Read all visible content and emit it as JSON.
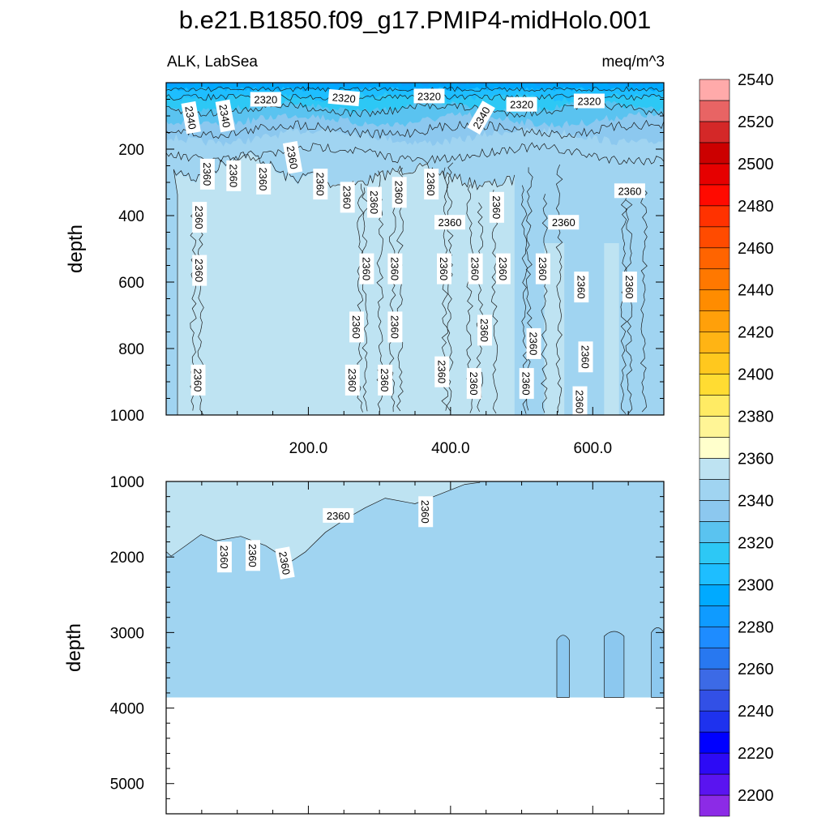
{
  "title": "b.e21.B1850.f09_g17.PMIP4-midHolo.001",
  "subtitle_left": "ALK, LabSea",
  "subtitle_right": "meq/m^3",
  "colors": {
    "axis": "#000000",
    "contour_line": "#1a1a1a",
    "missing": "#ffffff",
    "palette": [
      "#8c2be6",
      "#5a14f0",
      "#2d0af5",
      "#0000ff",
      "#1e32ee",
      "#3250e6",
      "#3c6ae6",
      "#2878f0",
      "#1e8cff",
      "#0f9bff",
      "#00aaff",
      "#1ebeff",
      "#2dc8f5",
      "#5ac3f0",
      "#8cc8ef",
      "#a0d4f1",
      "#bee3f2",
      "#ffffcc",
      "#fff596",
      "#ffeb64",
      "#ffdc32",
      "#ffc81e",
      "#ffb414",
      "#ffa00a",
      "#ff8c00",
      "#ff7800",
      "#ff6400",
      "#ff4b00",
      "#ff3200",
      "#ff0a00",
      "#e60000",
      "#cc0000",
      "#d42828",
      "#e86464",
      "#ffaaaa"
    ]
  },
  "chart_data": [
    {
      "type": "heatmap",
      "panel": "upper",
      "xlim": [
        0,
        700
      ],
      "ylim": [
        1000,
        0
      ],
      "x_ticks": [
        200,
        400,
        600
      ],
      "x_tick_labels": [
        "200.0",
        "400.0",
        "600.0"
      ],
      "y_ticks": [
        200,
        400,
        600,
        800,
        1000
      ],
      "y_tick_labels": [
        "200",
        "400",
        "600",
        "800",
        "1000"
      ],
      "ylabel": "depth",
      "contour_labels": [
        {
          "text": "2320",
          "x": 140,
          "y": 50,
          "angle": 0
        },
        {
          "text": "2320",
          "x": 250,
          "y": 45,
          "angle": 5
        },
        {
          "text": "2320",
          "x": 370,
          "y": 40,
          "angle": 0
        },
        {
          "text": "2320",
          "x": 500,
          "y": 65,
          "angle": 0
        },
        {
          "text": "2320",
          "x": 595,
          "y": 55,
          "angle": 0
        },
        {
          "text": "2340",
          "x": 35,
          "y": 105,
          "angle": 80
        },
        {
          "text": "2340",
          "x": 83,
          "y": 100,
          "angle": 80
        },
        {
          "text": "2340",
          "x": 443,
          "y": 105,
          "angle": -60
        },
        {
          "text": "2360",
          "x": 58,
          "y": 275,
          "angle": 90
        },
        {
          "text": "2360",
          "x": 95,
          "y": 280,
          "angle": 90
        },
        {
          "text": "2360",
          "x": 137,
          "y": 290,
          "angle": 90
        },
        {
          "text": "2360",
          "x": 178,
          "y": 225,
          "angle": 80
        },
        {
          "text": "2360",
          "x": 217,
          "y": 305,
          "angle": 90
        },
        {
          "text": "2360",
          "x": 255,
          "y": 345,
          "angle": 90
        },
        {
          "text": "2360",
          "x": 293,
          "y": 360,
          "angle": 90
        },
        {
          "text": "2360",
          "x": 328,
          "y": 330,
          "angle": 90
        },
        {
          "text": "2360",
          "x": 373,
          "y": 305,
          "angle": 90
        },
        {
          "text": "2360",
          "x": 399,
          "y": 420,
          "angle": 0
        },
        {
          "text": "2360",
          "x": 465,
          "y": 375,
          "angle": 90
        },
        {
          "text": "2360",
          "x": 559,
          "y": 420,
          "angle": 0
        },
        {
          "text": "2360",
          "x": 652,
          "y": 325,
          "angle": 0
        },
        {
          "text": "2360",
          "x": 47,
          "y": 405,
          "angle": 90
        },
        {
          "text": "2360",
          "x": 47,
          "y": 565,
          "angle": 90
        },
        {
          "text": "2360",
          "x": 282,
          "y": 560,
          "angle": 90
        },
        {
          "text": "2360",
          "x": 322,
          "y": 560,
          "angle": 90
        },
        {
          "text": "2360",
          "x": 391,
          "y": 560,
          "angle": 90
        },
        {
          "text": "2360",
          "x": 435,
          "y": 560,
          "angle": 90
        },
        {
          "text": "2360",
          "x": 474,
          "y": 560,
          "angle": 90
        },
        {
          "text": "2360",
          "x": 530,
          "y": 560,
          "angle": 90
        },
        {
          "text": "2360",
          "x": 584,
          "y": 615,
          "angle": 90
        },
        {
          "text": "2360",
          "x": 652,
          "y": 615,
          "angle": 90
        },
        {
          "text": "2360",
          "x": 268,
          "y": 735,
          "angle": 90
        },
        {
          "text": "2360",
          "x": 322,
          "y": 735,
          "angle": 90
        },
        {
          "text": "2360",
          "x": 448,
          "y": 745,
          "angle": 90
        },
        {
          "text": "2360",
          "x": 517,
          "y": 785,
          "angle": 90
        },
        {
          "text": "2360",
          "x": 590,
          "y": 825,
          "angle": 90
        },
        {
          "text": "2360",
          "x": 45,
          "y": 895,
          "angle": 90
        },
        {
          "text": "2360",
          "x": 262,
          "y": 895,
          "angle": 90
        },
        {
          "text": "2360",
          "x": 308,
          "y": 895,
          "angle": 90
        },
        {
          "text": "2360",
          "x": 388,
          "y": 870,
          "angle": 90
        },
        {
          "text": "2360",
          "x": 433,
          "y": 905,
          "angle": 90
        },
        {
          "text": "2360",
          "x": 507,
          "y": 905,
          "angle": 90
        },
        {
          "text": "2360",
          "x": 582,
          "y": 960,
          "angle": 90
        }
      ]
    },
    {
      "type": "heatmap",
      "panel": "lower",
      "xlim": [
        0,
        700
      ],
      "ylim": [
        5400,
        1000
      ],
      "y_ticks": [
        1000,
        2000,
        3000,
        4000,
        5000
      ],
      "y_tick_labels": [
        "1000",
        "2000",
        "3000",
        "4000",
        "5000"
      ],
      "ylabel": "depth",
      "data_bottom_depth": 3860,
      "contour_labels": [
        {
          "text": "2360",
          "x": 242,
          "y": 1450,
          "angle": 0
        },
        {
          "text": "2360",
          "x": 365,
          "y": 1400,
          "angle": 90
        },
        {
          "text": "2360",
          "x": 82,
          "y": 2000,
          "angle": 90
        },
        {
          "text": "2360",
          "x": 122,
          "y": 1980,
          "angle": 90
        },
        {
          "text": "2360",
          "x": 167,
          "y": 2080,
          "angle": 80
        }
      ]
    }
  ],
  "colorbar": {
    "levels": [
      2200,
      2210,
      2220,
      2230,
      2240,
      2250,
      2260,
      2270,
      2280,
      2290,
      2300,
      2310,
      2320,
      2330,
      2340,
      2350,
      2360,
      2370,
      2380,
      2390,
      2400,
      2410,
      2420,
      2430,
      2440,
      2450,
      2460,
      2470,
      2480,
      2490,
      2500,
      2510,
      2520,
      2530,
      2540,
      2550
    ],
    "labels": [
      "2200",
      "2220",
      "2240",
      "2260",
      "2280",
      "2300",
      "2320",
      "2340",
      "2360",
      "2380",
      "2400",
      "2420",
      "2440",
      "2460",
      "2480",
      "2500",
      "2520",
      "2540"
    ]
  }
}
